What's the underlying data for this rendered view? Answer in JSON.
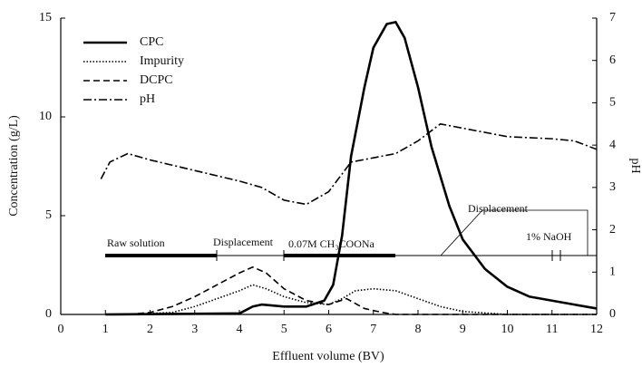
{
  "chart_data": {
    "type": "line",
    "xlabel": "Effluent volume (BV)",
    "ylabel": "Concentration (g/L)",
    "y2label": "pH",
    "xlim": [
      0,
      12
    ],
    "xticks": [
      0,
      1,
      2,
      3,
      4,
      5,
      6,
      7,
      8,
      9,
      10,
      11,
      12
    ],
    "ylim": [
      0,
      15
    ],
    "yticks": [
      0,
      5,
      10,
      15
    ],
    "y2lim": [
      0,
      7
    ],
    "y2ticks": [
      0,
      1,
      2,
      3,
      4,
      5,
      6,
      7
    ],
    "annotations": [
      "Raw solution",
      "Displacement",
      "0.07M CH₃COONa",
      "Displacement",
      "1% NaOH"
    ],
    "series": [
      {
        "name": "CPC",
        "color": "#000000",
        "style": "solid",
        "x": [
          1.0,
          4.0,
          4.3,
          4.5,
          5.0,
          5.5,
          5.9,
          6.1,
          6.3,
          6.5,
          6.8,
          7.0,
          7.3,
          7.5,
          7.7,
          8.0,
          8.3,
          8.7,
          9.0,
          9.5,
          10.0,
          10.5,
          11.0,
          11.5,
          12.0
        ],
        "values": [
          0,
          0.05,
          0.4,
          0.5,
          0.4,
          0.4,
          0.7,
          1.5,
          4,
          8,
          11.5,
          13.5,
          14.7,
          14.8,
          14,
          11.5,
          8.5,
          5.5,
          3.8,
          2.3,
          1.4,
          0.9,
          0.7,
          0.5,
          0.3
        ]
      },
      {
        "name": "Impurity",
        "color": "#000000",
        "style": "dotted",
        "x": [
          1.5,
          2.5,
          3.0,
          3.5,
          4.0,
          4.3,
          4.6,
          5.0,
          5.5,
          6.0,
          6.3,
          6.6,
          7.0,
          7.5,
          8.0,
          8.5,
          9.0,
          10.0,
          12.0
        ],
        "values": [
          0,
          0.1,
          0.4,
          0.8,
          1.2,
          1.5,
          1.3,
          0.9,
          0.6,
          0.5,
          0.8,
          1.2,
          1.3,
          1.2,
          0.8,
          0.4,
          0.15,
          0,
          0
        ]
      },
      {
        "name": "DCPC",
        "color": "#000000",
        "style": "dashed",
        "x": [
          1.5,
          2.0,
          2.5,
          3.0,
          3.5,
          4.0,
          4.3,
          4.6,
          5.0,
          5.5,
          6.0,
          6.4,
          6.8,
          7.2,
          7.5,
          12.0
        ],
        "values": [
          0,
          0.1,
          0.4,
          0.9,
          1.5,
          2.1,
          2.4,
          2.1,
          1.3,
          0.7,
          0.5,
          0.8,
          0.3,
          0.1,
          0,
          0
        ]
      },
      {
        "name": "pH",
        "color": "#000000",
        "style": "dashdot",
        "axis": "y2",
        "x": [
          0.9,
          1.1,
          1.5,
          2.0,
          3.0,
          4.0,
          4.5,
          5.0,
          5.5,
          6.0,
          6.5,
          7.0,
          7.5,
          8.0,
          8.5,
          9.0,
          10.0,
          11.0,
          11.5,
          12.0
        ],
        "values": [
          3.2,
          3.6,
          3.8,
          3.65,
          3.4,
          3.15,
          3.0,
          2.7,
          2.6,
          2.9,
          3.6,
          3.7,
          3.8,
          4.1,
          4.5,
          4.4,
          4.2,
          4.15,
          4.1,
          3.9
        ]
      }
    ]
  }
}
